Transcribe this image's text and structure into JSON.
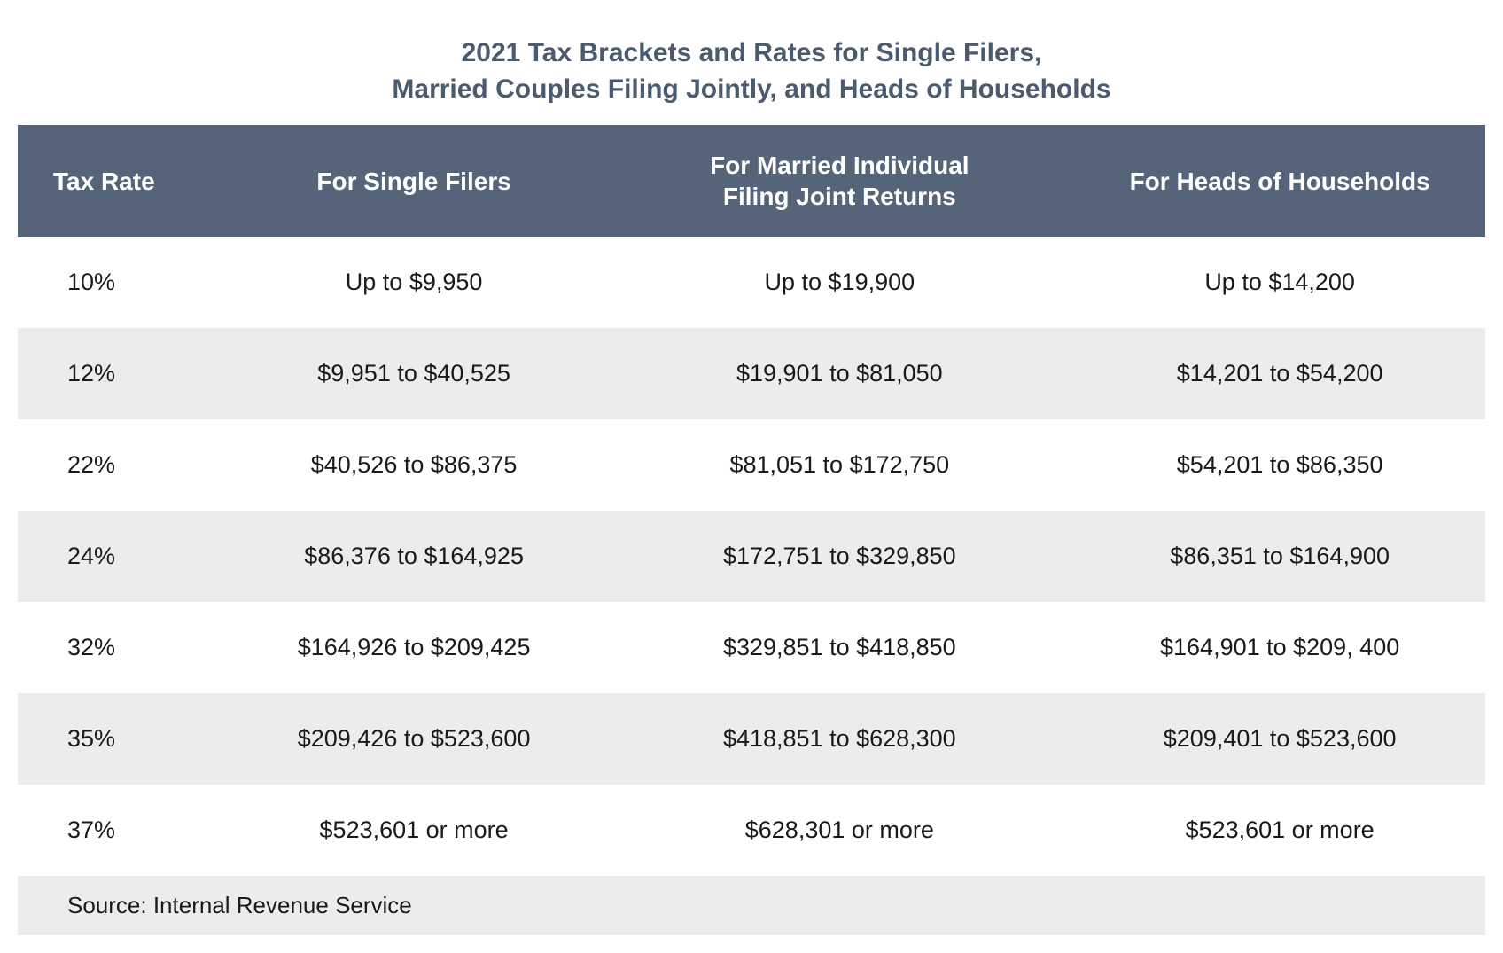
{
  "title": {
    "line1": "2021 Tax Brackets and Rates for Single Filers,",
    "line2": "Married Couples Filing Jointly, and Heads of Households"
  },
  "table": {
    "columns": [
      "Tax Rate",
      "For Single Filers",
      "For Married Individual Filing Joint Returns",
      "For Heads of Households"
    ],
    "rows": [
      [
        "10%",
        "Up to $9,950",
        "Up to $19,900",
        "Up to $14,200"
      ],
      [
        "12%",
        "$9,951 to $40,525",
        "$19,901 to $81,050",
        "$14,201 to $54,200"
      ],
      [
        "22%",
        "$40,526 to $86,375",
        "$81,051 to $172,750",
        "$54,201 to $86,350"
      ],
      [
        "24%",
        "$86,376 to $164,925",
        "$172,751 to $329,850",
        "$86,351 to $164,900"
      ],
      [
        "32%",
        "$164,926 to $209,425",
        "$329,851 to $418,850",
        "$164,901 to $209, 400"
      ],
      [
        "35%",
        "$209,426 to $523,600",
        "$418,851 to $628,300",
        "$209,401 to $523,600"
      ],
      [
        "37%",
        "$523,601 or more",
        "$628,301 or more",
        "$523,601 or more"
      ]
    ],
    "header_bg_color": "#56647a",
    "header_text_color": "#ffffff",
    "stripe_color": "#ececec",
    "body_text_color": "#1a1a1a",
    "title_color": "#4a5a6f",
    "header_fontsize": 28,
    "body_fontsize": 27,
    "title_fontsize": 30
  },
  "source": "Source: Internal Revenue Service"
}
